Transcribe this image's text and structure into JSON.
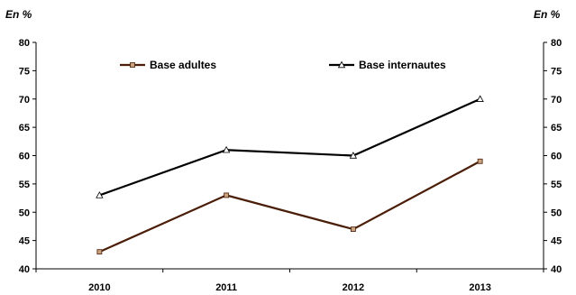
{
  "chart_data": {
    "type": "line",
    "y_unit_left": "En %",
    "y_unit_right": "En %",
    "categories": [
      "2010",
      "2011",
      "2012",
      "2013"
    ],
    "ylim": [
      40,
      80
    ],
    "yticks": [
      40,
      45,
      50,
      55,
      60,
      65,
      70,
      75,
      80
    ],
    "grid": false,
    "legend_position": "top",
    "series": [
      {
        "name": "Base adultes",
        "values": [
          43,
          53,
          47,
          59
        ],
        "color": "#4a1e08",
        "marker": "square",
        "marker_color": "#c9a27e"
      },
      {
        "name": "Base internautes",
        "values": [
          53,
          61,
          60,
          70
        ],
        "color": "#000000",
        "marker": "triangle",
        "marker_color": "#ffffff"
      }
    ]
  }
}
